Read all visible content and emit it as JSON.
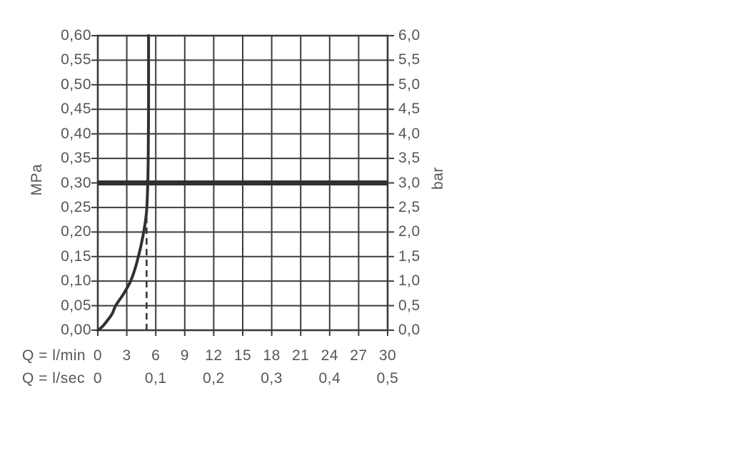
{
  "colors": {
    "background": "#ffffff",
    "grid_line": "#3a3c3f",
    "text": "#545659",
    "curve": "#2e3032",
    "reference_line": "#2e3032",
    "dashed_line": "#2e3032"
  },
  "chart_data": {
    "type": "line",
    "title": "",
    "grid": true,
    "x_axis_primary": {
      "label": "Q = l/min",
      "range": [
        0,
        30
      ],
      "values": [
        0,
        3,
        6,
        9,
        12,
        15,
        18,
        21,
        24,
        27,
        30
      ],
      "ticks": [
        "0",
        "3",
        "6",
        "9",
        "12",
        "15",
        "18",
        "21",
        "24",
        "27",
        "30"
      ]
    },
    "x_axis_secondary": {
      "label": "Q = l/sec",
      "values_lmin": [
        0,
        6,
        12,
        18,
        24,
        30
      ],
      "ticks": [
        "0",
        "0,1",
        "0,2",
        "0,3",
        "0,4",
        "0,5"
      ]
    },
    "y_axis_left": {
      "label": "MPa",
      "range": [
        0,
        0.6
      ],
      "values": [
        0.6,
        0.55,
        0.5,
        0.45,
        0.4,
        0.35,
        0.3,
        0.25,
        0.2,
        0.15,
        0.1,
        0.05,
        0.0
      ],
      "ticks": [
        "0,60",
        "0,55",
        "0,50",
        "0,45",
        "0,40",
        "0,35",
        "0,30",
        "0,25",
        "0,20",
        "0,15",
        "0,10",
        "0,05",
        "0,00"
      ]
    },
    "y_axis_right": {
      "label": "bar",
      "range": [
        0,
        6
      ],
      "ticks": [
        "6,0",
        "5,5",
        "5,0",
        "4,5",
        "4,0",
        "3,5",
        "3,0",
        "2,5",
        "2,0",
        "1,5",
        "1,0",
        "0,5",
        "0,0"
      ]
    },
    "series": [
      {
        "name": "flow-rate-curve",
        "points_lmin_mpa": [
          [
            0,
            0
          ],
          [
            0.5,
            0.008
          ],
          [
            1.0,
            0.02
          ],
          [
            1.5,
            0.034
          ],
          [
            1.85,
            0.05
          ],
          [
            2.7,
            0.075
          ],
          [
            3.4,
            0.1
          ],
          [
            3.85,
            0.125
          ],
          [
            4.2,
            0.15
          ],
          [
            4.5,
            0.175
          ],
          [
            4.75,
            0.2
          ],
          [
            4.95,
            0.225
          ],
          [
            5.08,
            0.25
          ],
          [
            5.17,
            0.3
          ],
          [
            5.22,
            0.35
          ],
          [
            5.25,
            0.45
          ],
          [
            5.25,
            0.6
          ]
        ]
      }
    ],
    "reference_line": {
      "value_mpa": 0.3,
      "value_bar": 3.0
    },
    "dashed_guide": {
      "q_lmin": 5.05,
      "from_mpa": 0.0,
      "to_mpa": 0.255
    }
  }
}
